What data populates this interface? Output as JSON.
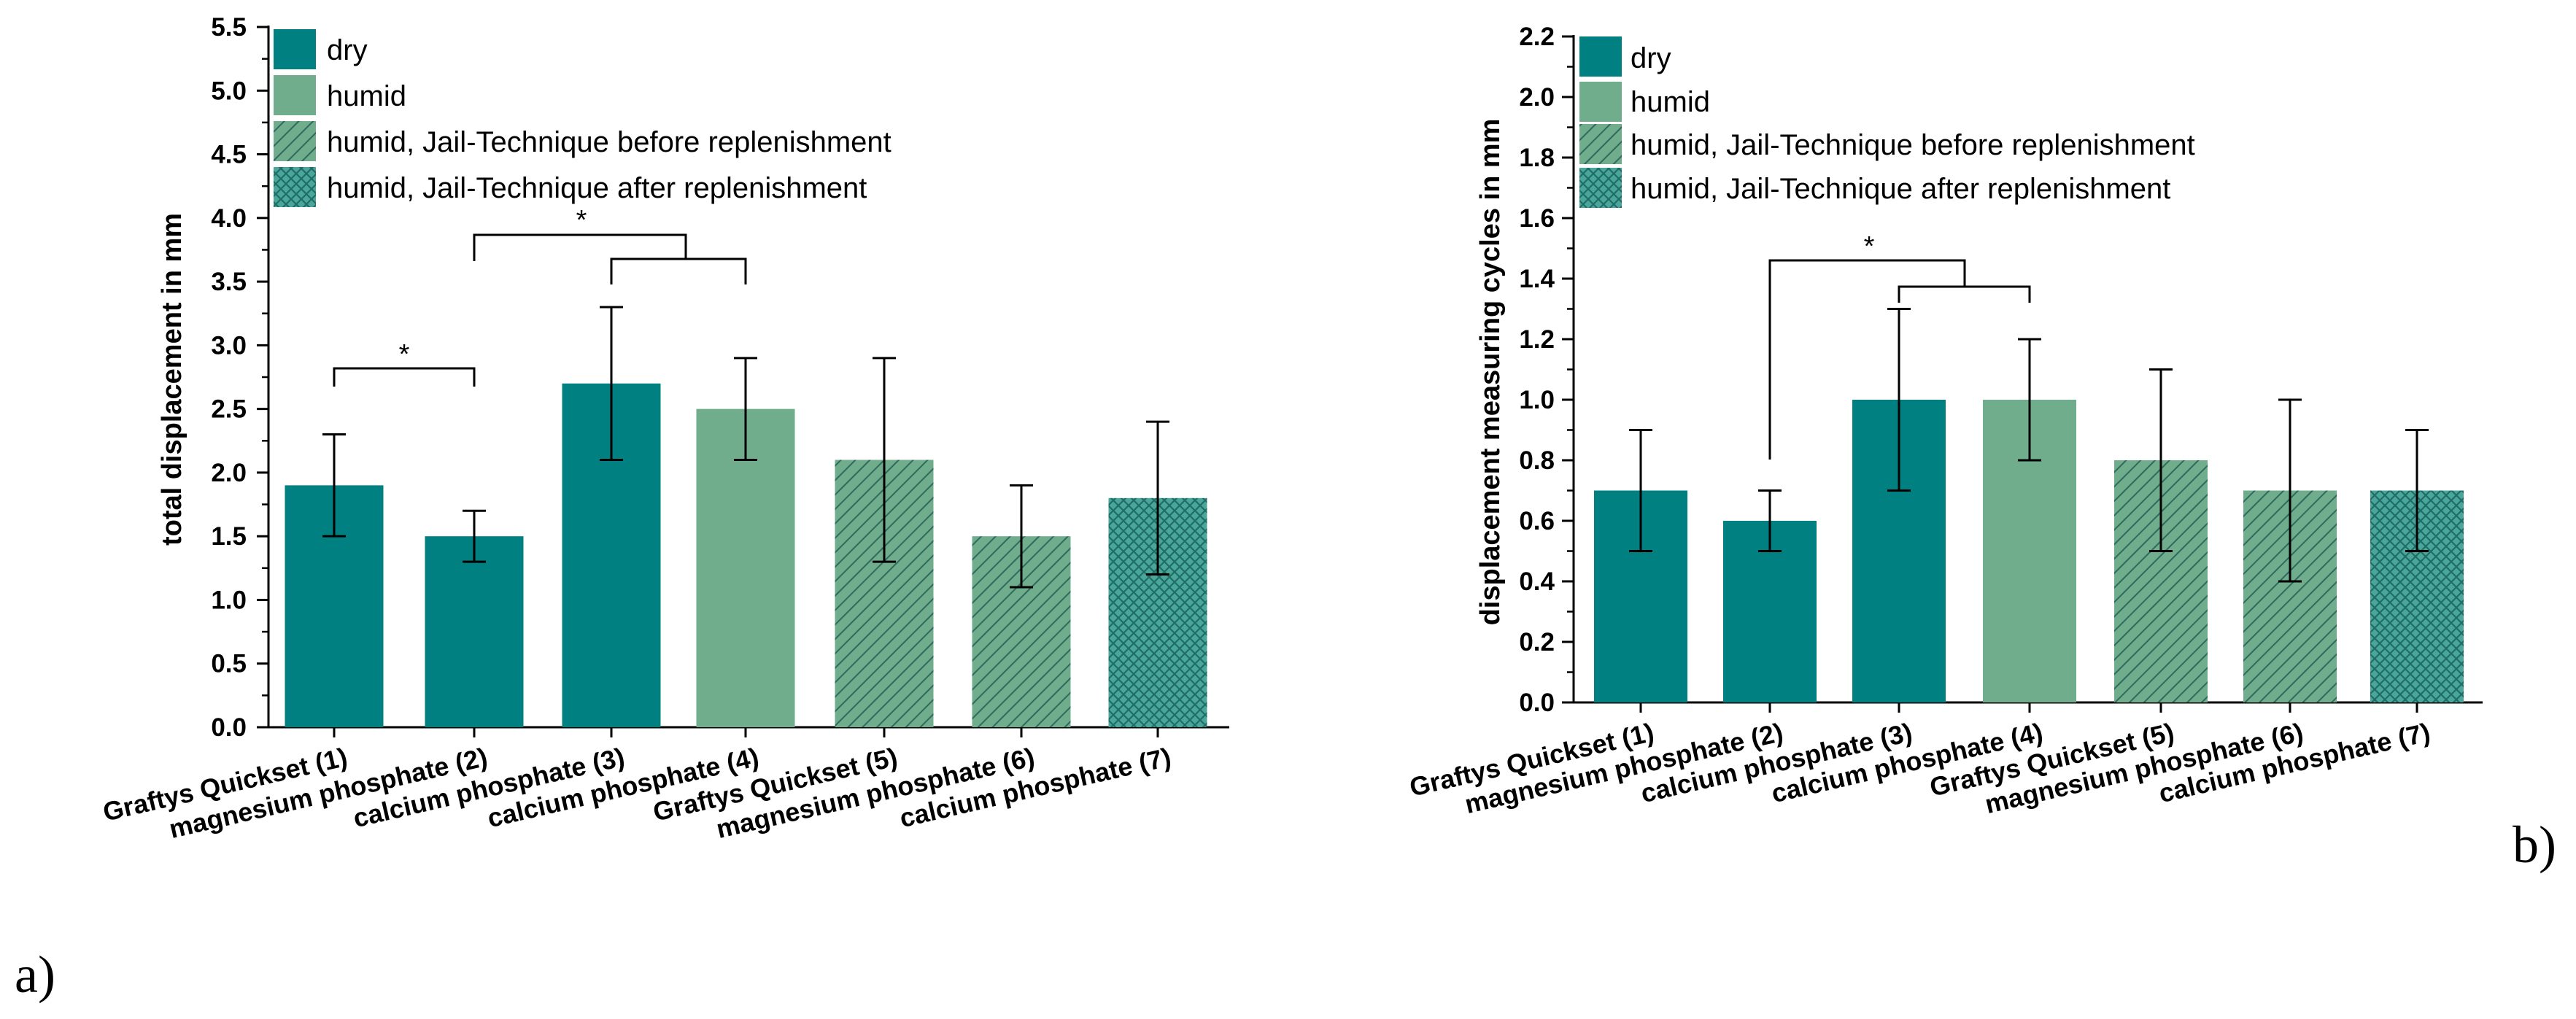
{
  "chart_data": [
    {
      "type": "bar",
      "panel_label": "a)",
      "ylabel": "total displacement in mm",
      "ylim": [
        0,
        5.5
      ],
      "yticks": [
        "0.0",
        "0.5",
        "1.0",
        "1.5",
        "2.0",
        "2.5",
        "3.0",
        "3.5",
        "4.0",
        "4.5",
        "5.0",
        "5.5"
      ],
      "categories": [
        "Graftys Quickset (1)",
        "magnesium phosphate (2)",
        "calcium phosphate (3)",
        "calcium phosphate (4)",
        "Graftys Quickset (5)",
        "magnesium phosphate (6)",
        "calcium phosphate (7)"
      ],
      "values": [
        1.9,
        1.5,
        2.7,
        2.5,
        2.1,
        1.5,
        1.8
      ],
      "errors": [
        0.4,
        0.2,
        0.6,
        0.4,
        0.8,
        0.4,
        0.6
      ],
      "conditions": [
        "dry",
        "dry",
        "dry",
        "humid",
        "jail_before",
        "jail_before",
        "jail_after"
      ],
      "significance": [
        "*",
        "*"
      ]
    },
    {
      "type": "bar",
      "panel_label": "b)",
      "ylabel": "displacement measuring cycles in mm",
      "ylim": [
        0,
        2.2
      ],
      "yticks": [
        "0.0",
        "0.2",
        "0.4",
        "0.6",
        "0.8",
        "1.0",
        "1.2",
        "1.4",
        "1.6",
        "1.8",
        "2.0",
        "2.2"
      ],
      "categories": [
        "Graftys Quickset (1)",
        "magnesium phosphate (2)",
        "calcium phosphate (3)",
        "calcium phosphate (4)",
        "Graftys Quickset (5)",
        "magnesium phosphate (6)",
        "calcium phosphate (7)"
      ],
      "values": [
        0.7,
        0.6,
        1.0,
        1.0,
        0.8,
        0.7,
        0.7
      ],
      "errors": [
        0.2,
        0.1,
        0.3,
        0.2,
        0.3,
        0.3,
        0.2
      ],
      "conditions": [
        "dry",
        "dry",
        "dry",
        "humid",
        "jail_before",
        "jail_before",
        "jail_after"
      ],
      "significance": [
        "*"
      ]
    }
  ],
  "legend": [
    {
      "key": "dry",
      "label": "dry"
    },
    {
      "key": "humid",
      "label": "humid"
    },
    {
      "key": "jail_before",
      "label": "humid, Jail-Technique before replenishment"
    },
    {
      "key": "jail_after",
      "label": "humid, Jail-Technique after replenishment"
    }
  ],
  "colors": {
    "dry": "#008080",
    "humid": "#6fad8c",
    "hatch": "#2f6b5c",
    "axis": "#000000"
  }
}
